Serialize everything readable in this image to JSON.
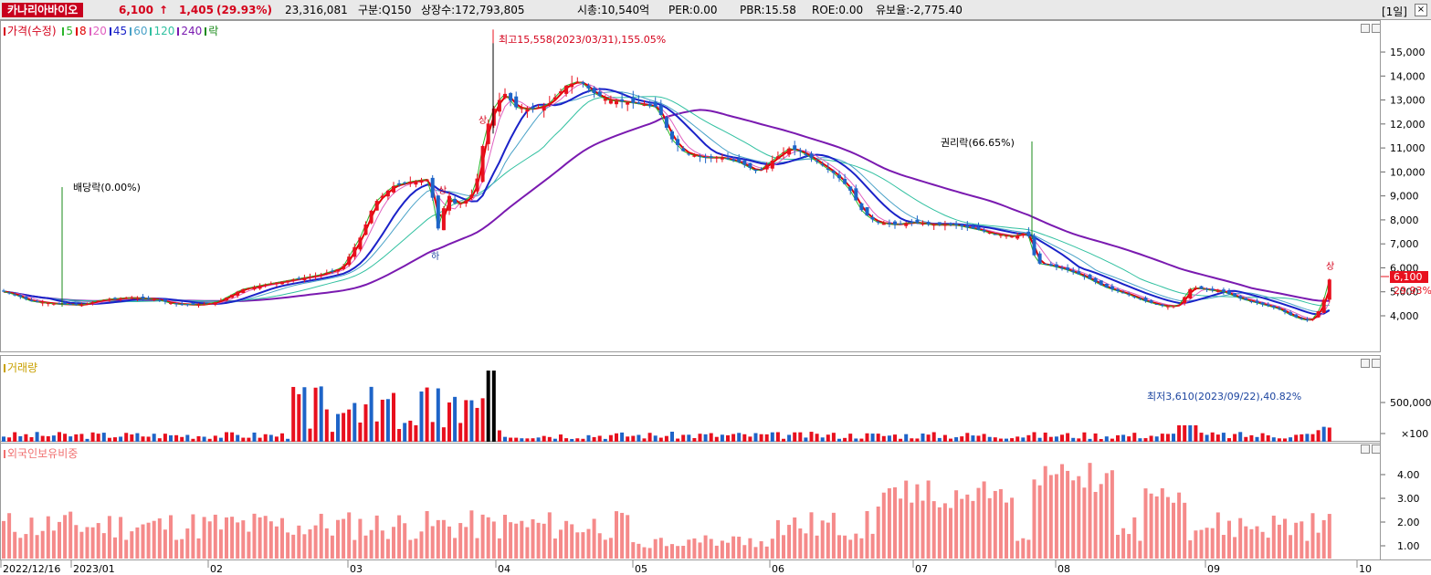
{
  "header": {
    "stock_name": "카나리아바이오",
    "price": "6,100",
    "change_arrow": "↑",
    "change": "1,405",
    "change_pct": "(29.93%)",
    "volume": "23,316,081",
    "division": "구분:Q150",
    "listed_shares": "상장수:172,793,805",
    "market_cap": "시총:10,540억",
    "per": "PER:0.00",
    "pbr": "PBR:15.58",
    "roe": "ROE:0.00",
    "float": "유보율:-2,775.40",
    "period": "[1일]",
    "close_label": "×"
  },
  "price_panel": {
    "legend_title": "가격(수정)",
    "ma_legend": [
      {
        "label": "5",
        "color": "#2bb52b"
      },
      {
        "label": "8",
        "color": "#e00000"
      },
      {
        "label": "20",
        "color": "#e060c0"
      },
      {
        "label": "45",
        "color": "#1a22c8"
      },
      {
        "label": "60",
        "color": "#4aa2c8"
      },
      {
        "label": "120",
        "color": "#30c0a0"
      },
      {
        "label": "240",
        "color": "#7a1ab0"
      },
      {
        "label": "락",
        "color": "#1a8a1a"
      }
    ],
    "y_ticks": [
      "15,000",
      "14,000",
      "13,000",
      "12,000",
      "11,000",
      "10,000",
      "9,000",
      "8,000",
      "7,000",
      "6,000",
      "5,000",
      "4,000"
    ],
    "last_price_tag": "6,100",
    "last_pct_tag": "29.93%",
    "annotations": {
      "high": "최고15,558(2023/03/31),155.05%",
      "low": "최저3,610(2023/09/22),40.82%",
      "dividend": "배당락(0.00%)",
      "rights": "권리락(66.65%)",
      "limit_up_1": "상",
      "limit_up_2": "상",
      "limit_up_3": "상",
      "limit_down": "하"
    }
  },
  "volume_panel": {
    "title": "거래량",
    "y_ticks": [
      "500,000",
      "×100"
    ]
  },
  "foreign_panel": {
    "title": "외국인보유비중",
    "y_ticks": [
      "4.00",
      "3.00",
      "2.00",
      "1.00"
    ]
  },
  "x_axis": {
    "labels": [
      "2022/12/16",
      "2023/01",
      "02",
      "03",
      "04",
      "05",
      "06",
      "07",
      "08",
      "09",
      "10"
    ]
  },
  "colors": {
    "up": "#e8101e",
    "down": "#1e64c8",
    "foreign_bar": "#f58a8a",
    "highlight_volume": "#000000"
  }
}
